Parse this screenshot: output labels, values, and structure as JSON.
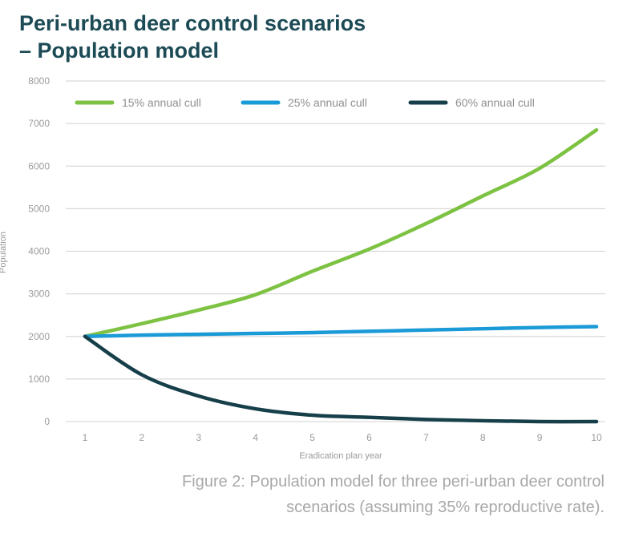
{
  "title": {
    "line1": "Peri-urban deer control scenarios",
    "line2": "– Population model"
  },
  "caption": {
    "line1": "Figure 2: Population model for three peri-urban deer control",
    "line2": "scenarios (assuming 35% reproductive rate)."
  },
  "colors": {
    "title": "#1c4a55",
    "grid": "#d9d9d9",
    "tick_text": "#9a9a9a",
    "caption": "#a8a8a8"
  },
  "chart_data": {
    "type": "line",
    "title": "",
    "xlabel": "Eradication plan year",
    "ylabel": "Population",
    "x": [
      1,
      2,
      3,
      4,
      5,
      6,
      7,
      8,
      9,
      10
    ],
    "xlim": [
      1,
      10
    ],
    "ylim": [
      0,
      8000
    ],
    "yticks": [
      0,
      1000,
      2000,
      3000,
      4000,
      5000,
      6000,
      7000,
      8000
    ],
    "grid": "horizontal",
    "legend_position": "top",
    "series": [
      {
        "name": "15% annual cull",
        "color": "#7dc242",
        "values": [
          2000,
          2300,
          2620,
          2980,
          3530,
          4050,
          4650,
          5300,
          5950,
          6850
        ]
      },
      {
        "name": "25% annual cull",
        "color": "#1a9ad6",
        "values": [
          2000,
          2030,
          2050,
          2070,
          2090,
          2120,
          2150,
          2180,
          2210,
          2230
        ]
      },
      {
        "name": "60% annual cull",
        "color": "#163f4a",
        "values": [
          2000,
          1100,
          600,
          300,
          150,
          100,
          50,
          20,
          0,
          0
        ]
      }
    ]
  }
}
